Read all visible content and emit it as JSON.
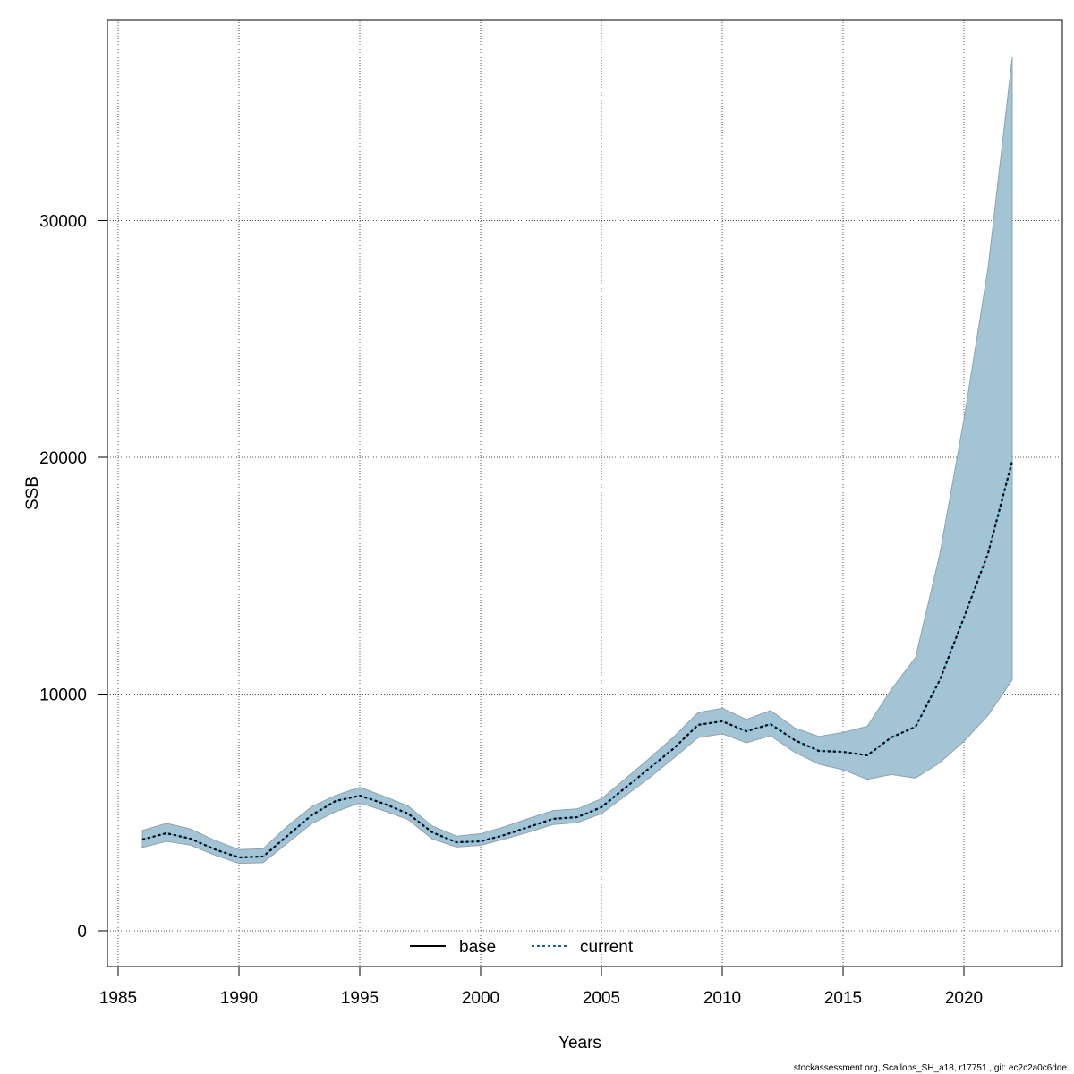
{
  "chart_data": {
    "type": "area",
    "title": "",
    "xlabel": "Years",
    "ylabel": "SSB",
    "xlim": [
      1984.6,
      2023.9
    ],
    "ylim": [
      -1400,
      38500
    ],
    "x_ticks": [
      1985,
      1990,
      1995,
      2000,
      2005,
      2010,
      2015,
      2020
    ],
    "y_ticks": [
      0,
      10000,
      20000,
      30000
    ],
    "grid": true,
    "legend": {
      "placement": "bottom",
      "entries": [
        {
          "label": "base",
          "style": "solid",
          "color": "#000000"
        },
        {
          "label": "current",
          "style": "dotted",
          "color": "#1f5f8b"
        }
      ]
    },
    "colors": {
      "band": "#a3c4d5",
      "band_border": "#8fa3ad",
      "line": "#000000",
      "line_under": "#5bb8e6"
    },
    "x": [
      1986,
      1987,
      1988,
      1989,
      1990,
      1991,
      1992,
      1993,
      1994,
      1995,
      1996,
      1997,
      1998,
      1999,
      2000,
      2001,
      2002,
      2003,
      2004,
      2005,
      2006,
      2007,
      2008,
      2009,
      2010,
      2011,
      2012,
      2013,
      2014,
      2015,
      2016,
      2017,
      2018,
      2019,
      2020,
      2021,
      2022
    ],
    "series": [
      {
        "name": "current",
        "values": [
          3860,
          4120,
          3890,
          3440,
          3100,
          3140,
          4010,
          4880,
          5480,
          5710,
          5370,
          4950,
          4160,
          3740,
          3780,
          4050,
          4390,
          4730,
          4800,
          5220,
          6050,
          6880,
          7710,
          8700,
          8850,
          8430,
          8730,
          8050,
          7600,
          7560,
          7410,
          8170,
          8620,
          10590,
          13230,
          15950,
          19850
        ]
      }
    ],
    "band_upper": [
      4240,
      4540,
      4300,
      3820,
      3430,
      3470,
      4420,
      5240,
      5720,
      6060,
      5680,
      5270,
      4430,
      4000,
      4100,
      4400,
      4750,
      5080,
      5150,
      5580,
      6430,
      7300,
      8200,
      9220,
      9400,
      8930,
      9310,
      8570,
      8210,
      8380,
      8640,
      10200,
      11550,
      15900,
      21600,
      28000,
      36900
    ],
    "band_lower": [
      3520,
      3780,
      3620,
      3200,
      2850,
      2880,
      3700,
      4520,
      5030,
      5400,
      5070,
      4700,
      3880,
      3540,
      3610,
      3880,
      4170,
      4490,
      4570,
      4950,
      5710,
      6470,
      7300,
      8160,
      8320,
      7940,
      8240,
      7540,
      7040,
      6800,
      6400,
      6600,
      6450,
      7100,
      8000,
      9100,
      10600
    ]
  },
  "footer": "stockassessment.org, Scallops_SH_a18, r17751 , git: ec2c2a0c6dde"
}
